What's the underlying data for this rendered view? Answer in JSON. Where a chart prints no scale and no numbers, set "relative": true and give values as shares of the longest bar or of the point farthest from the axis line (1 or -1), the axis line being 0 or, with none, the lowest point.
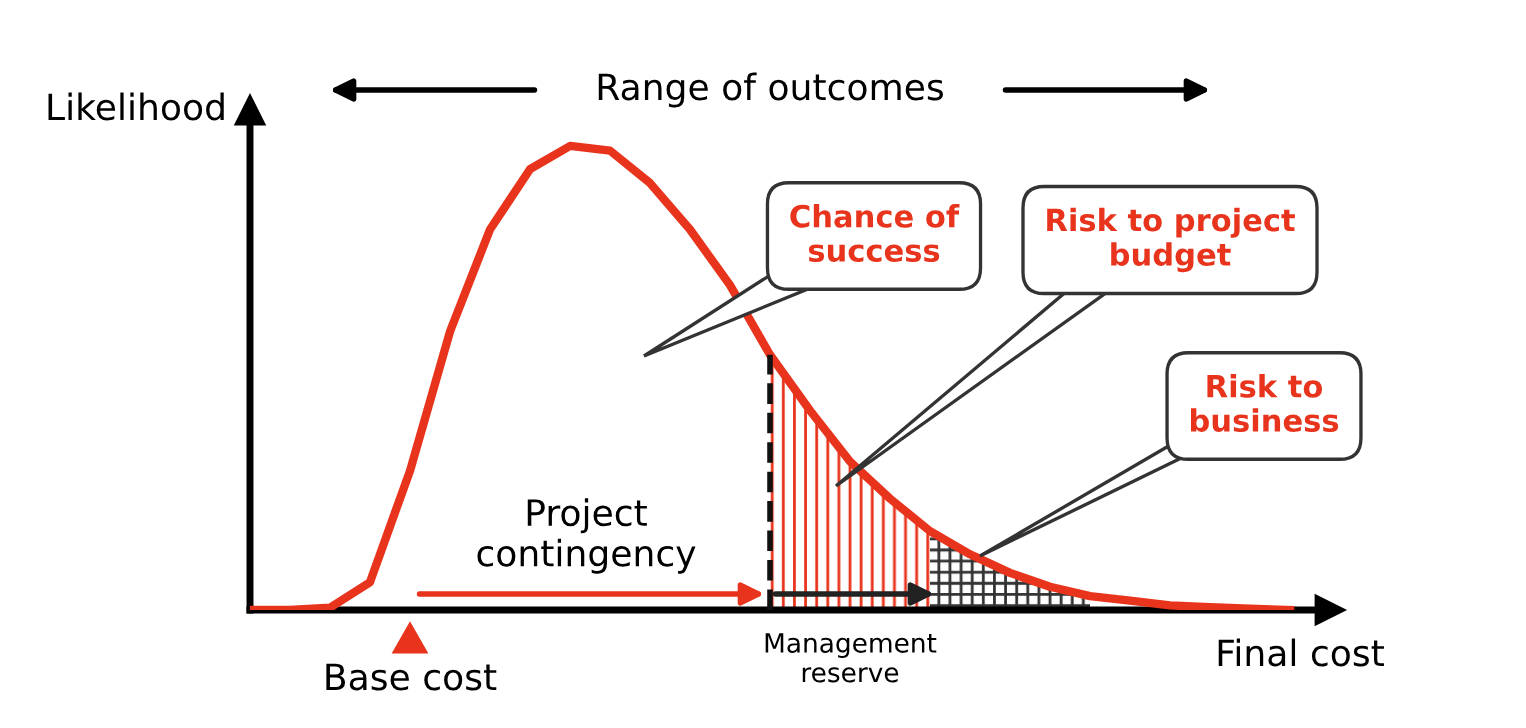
{
  "chart_data": {
    "type": "line",
    "relative": true,
    "xlabel": "Final cost",
    "ylabel": "Likelihood",
    "categories": [
      null,
      null,
      null,
      null,
      null,
      null,
      null,
      null,
      null,
      null,
      null,
      null,
      null,
      null,
      null,
      null,
      null,
      null,
      null,
      null,
      null,
      null,
      null,
      null,
      null,
      null,
      null
    ],
    "series": [
      {
        "color": "#e8341c",
        "values": [
          0,
          0,
          0.005,
          0.06,
          0.3,
          0.6,
          0.82,
          0.95,
          1.0,
          0.99,
          0.92,
          0.82,
          0.7,
          0.55,
          0.43,
          0.32,
          0.24,
          0.17,
          0.12,
          0.08,
          0.05,
          0.03,
          0.02,
          0.01,
          0.006,
          0.003,
          0
        ]
      },
      {
        "type": "area",
        "color": "#e8341c",
        "values": [
          null,
          null,
          null,
          null,
          null,
          null,
          null,
          null,
          null,
          null,
          null,
          null,
          null,
          0.55,
          0.43,
          0.32,
          0.24,
          0.17,
          null,
          null,
          null,
          null,
          null,
          null,
          null,
          null,
          null
        ]
      },
      {
        "type": "area",
        "color": "#333333",
        "values": [
          null,
          null,
          null,
          null,
          null,
          null,
          null,
          null,
          null,
          null,
          null,
          null,
          null,
          null,
          null,
          null,
          null,
          0.17,
          0.12,
          0.08,
          0.05,
          0.03,
          null,
          null,
          null,
          null,
          null
        ]
      }
    ],
    "annotations": [
      "Range of outcomes",
      "Chance of\nsuccess",
      "Risk to project\nbudget",
      "Risk to\nbusiness",
      "Project\ncontingency",
      "Management\nreserve",
      "Base cost"
    ],
    "marker": "none",
    "line_style": "solid"
  }
}
